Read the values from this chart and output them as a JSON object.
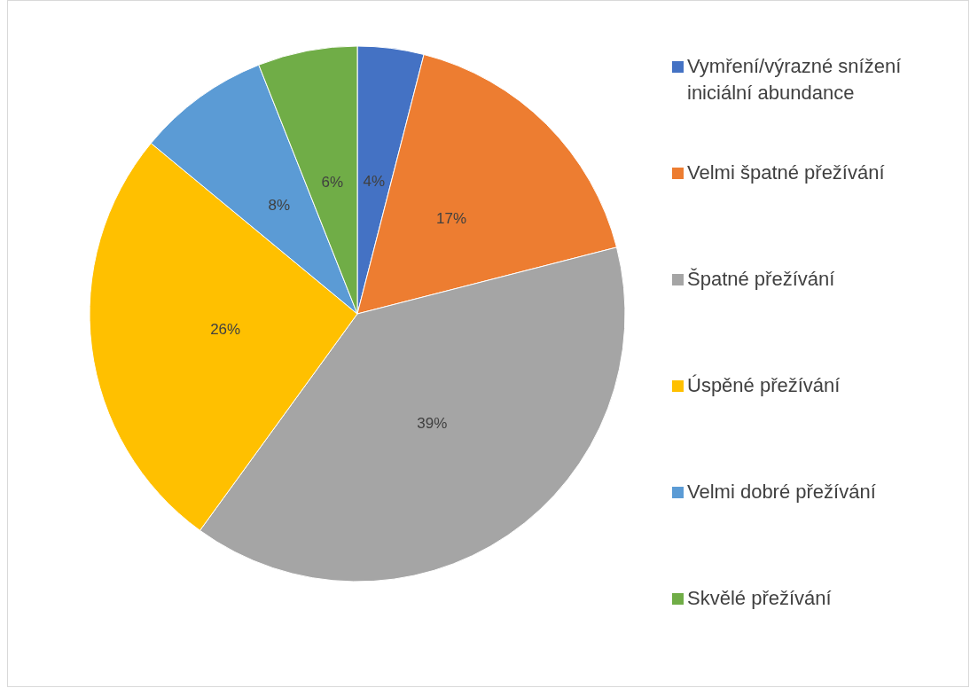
{
  "chart_data": {
    "type": "pie",
    "categories": [
      "Vymření/výrazné snížení iniciální abundance",
      "Velmi špatné přežívání",
      "Špatné přežívání",
      "Úspěné přežívání",
      "Velmi dobré přežívání",
      "Skvělé přežívání"
    ],
    "values": [
      4,
      17,
      39,
      26,
      8,
      6
    ],
    "colors": [
      "#4472c4",
      "#ed7d31",
      "#a5a5a5",
      "#ffc000",
      "#5b9bd5",
      "#70ad47"
    ],
    "value_labels": [
      "4%",
      "17%",
      "39%",
      "26%",
      "8%",
      "6%"
    ],
    "legend": "right"
  }
}
